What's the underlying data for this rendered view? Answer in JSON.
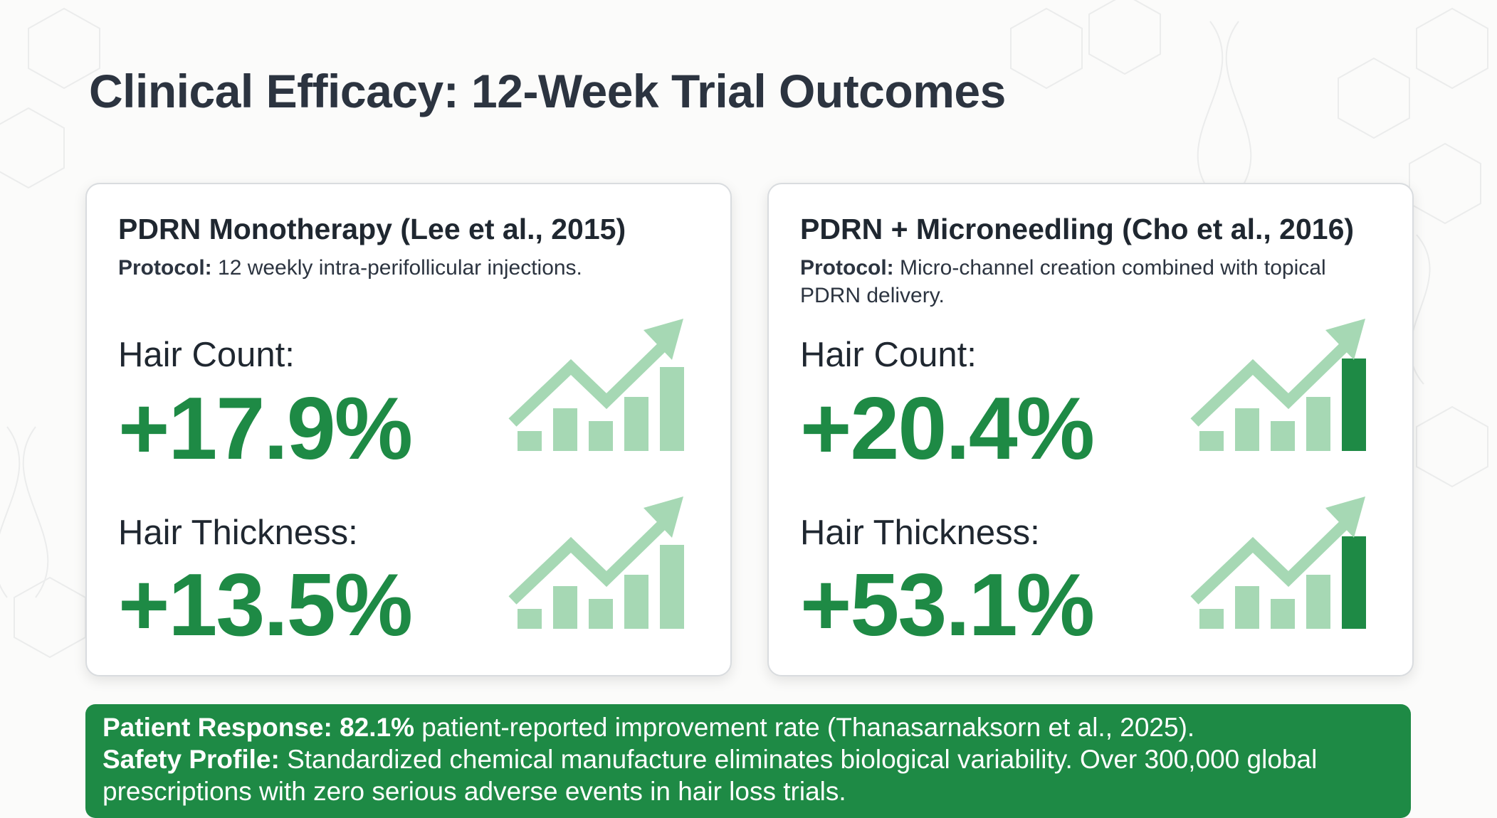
{
  "title": "Clinical Efficacy: 12-Week Trial Outcomes",
  "cards": [
    {
      "title": "PDRN Monotherapy (Lee et al., 2015)",
      "protocol_label": "Protocol:",
      "protocol_text": " 12 weekly intra-perifollicular injections.",
      "metrics": [
        {
          "label": "Hair Count:",
          "value": "+17.9%"
        },
        {
          "label": "Hair Thickness:",
          "value": "+13.5%"
        }
      ]
    },
    {
      "title": "PDRN + Microneedling (Cho et al., 2016)",
      "protocol_label": "Protocol:",
      "protocol_text": " Micro-channel creation combined with topical PDRN delivery.",
      "metrics": [
        {
          "label": "Hair Count:",
          "value": "+20.4%"
        },
        {
          "label": "Hair Thickness:",
          "value": "+53.1%"
        }
      ]
    }
  ],
  "callout": {
    "line1_label": "Patient Response: 82.1%",
    "line1_text": " patient-reported improvement rate (Thanasarnaksorn et al., 2025).",
    "line2_label": "Safety Profile:",
    "line2_text": " Standardized chemical manufacture eliminates biological variability. Over 300,000 global prescriptions with zero serious adverse events in hair loss trials."
  },
  "icons": {
    "growth": "growth-chart-icon",
    "background": "dna-hexagon-pattern"
  },
  "colors": {
    "accent": "#1e8a45",
    "accent_light": "#a6d8b4",
    "title": "#2c3440",
    "card_border": "#d9dcdf"
  }
}
